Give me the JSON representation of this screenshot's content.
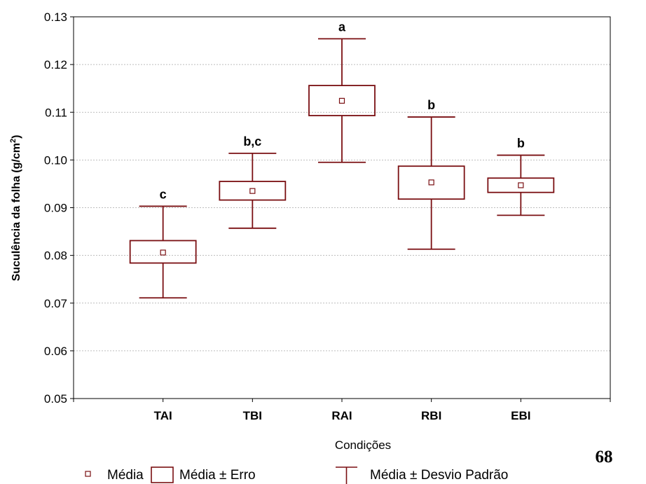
{
  "chart_data": {
    "type": "box",
    "xlabel": "Condições",
    "ylabel": "Suculência da folha (g/cm",
    "ylabel_sup": "2",
    "ylabel_tail": ")",
    "ylim": [
      0.05,
      0.13
    ],
    "yticks": [
      "0.05",
      "0.06",
      "0.07",
      "0.08",
      "0.09",
      "0.10",
      "0.11",
      "0.12",
      "0.13"
    ],
    "grid": true,
    "box_color": "#7a0f12",
    "categories": [
      "TAI",
      "TBI",
      "RAI",
      "RBI",
      "EBI"
    ],
    "letters": [
      "c",
      "b,c",
      "a",
      "b",
      "b"
    ],
    "mean": [
      0.0806,
      0.0935,
      0.1124,
      0.0953,
      0.0947
    ],
    "se_low": [
      0.0784,
      0.0916,
      0.1093,
      0.0918,
      0.0932
    ],
    "se_high": [
      0.0831,
      0.0955,
      0.1156,
      0.0987,
      0.0962
    ],
    "sd_low": [
      0.0711,
      0.0857,
      0.0995,
      0.0813,
      0.0884
    ],
    "sd_high": [
      0.0903,
      0.1014,
      0.1254,
      0.109,
      0.101
    ],
    "legend": {
      "position": "bottom",
      "items": [
        "Média",
        "Média ± Erro",
        "Média ± Desvio Padrão"
      ]
    }
  },
  "page_number": "68"
}
